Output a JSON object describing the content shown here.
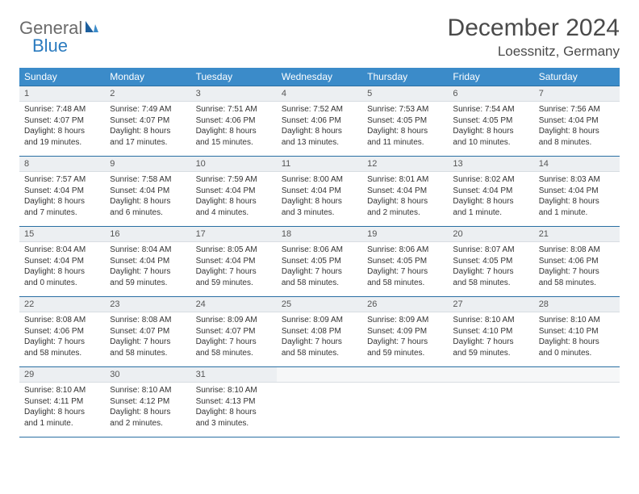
{
  "logo": {
    "word1": "General",
    "word2": "Blue",
    "color1": "#6b6b6b",
    "color2": "#2b7bbf"
  },
  "title": "December 2024",
  "location": "Loessnitz, Germany",
  "colors": {
    "header_bg": "#3b8bc9",
    "header_text": "#ffffff",
    "row_border": "#2a6fa3",
    "daynum_bg": "#eceff2",
    "body_text": "#333333"
  },
  "weekdays": [
    "Sunday",
    "Monday",
    "Tuesday",
    "Wednesday",
    "Thursday",
    "Friday",
    "Saturday"
  ],
  "days": [
    {
      "n": "1",
      "sr": "7:48 AM",
      "ss": "4:07 PM",
      "dl": "8 hours and 19 minutes."
    },
    {
      "n": "2",
      "sr": "7:49 AM",
      "ss": "4:07 PM",
      "dl": "8 hours and 17 minutes."
    },
    {
      "n": "3",
      "sr": "7:51 AM",
      "ss": "4:06 PM",
      "dl": "8 hours and 15 minutes."
    },
    {
      "n": "4",
      "sr": "7:52 AM",
      "ss": "4:06 PM",
      "dl": "8 hours and 13 minutes."
    },
    {
      "n": "5",
      "sr": "7:53 AM",
      "ss": "4:05 PM",
      "dl": "8 hours and 11 minutes."
    },
    {
      "n": "6",
      "sr": "7:54 AM",
      "ss": "4:05 PM",
      "dl": "8 hours and 10 minutes."
    },
    {
      "n": "7",
      "sr": "7:56 AM",
      "ss": "4:04 PM",
      "dl": "8 hours and 8 minutes."
    },
    {
      "n": "8",
      "sr": "7:57 AM",
      "ss": "4:04 PM",
      "dl": "8 hours and 7 minutes."
    },
    {
      "n": "9",
      "sr": "7:58 AM",
      "ss": "4:04 PM",
      "dl": "8 hours and 6 minutes."
    },
    {
      "n": "10",
      "sr": "7:59 AM",
      "ss": "4:04 PM",
      "dl": "8 hours and 4 minutes."
    },
    {
      "n": "11",
      "sr": "8:00 AM",
      "ss": "4:04 PM",
      "dl": "8 hours and 3 minutes."
    },
    {
      "n": "12",
      "sr": "8:01 AM",
      "ss": "4:04 PM",
      "dl": "8 hours and 2 minutes."
    },
    {
      "n": "13",
      "sr": "8:02 AM",
      "ss": "4:04 PM",
      "dl": "8 hours and 1 minute."
    },
    {
      "n": "14",
      "sr": "8:03 AM",
      "ss": "4:04 PM",
      "dl": "8 hours and 1 minute."
    },
    {
      "n": "15",
      "sr": "8:04 AM",
      "ss": "4:04 PM",
      "dl": "8 hours and 0 minutes."
    },
    {
      "n": "16",
      "sr": "8:04 AM",
      "ss": "4:04 PM",
      "dl": "7 hours and 59 minutes."
    },
    {
      "n": "17",
      "sr": "8:05 AM",
      "ss": "4:04 PM",
      "dl": "7 hours and 59 minutes."
    },
    {
      "n": "18",
      "sr": "8:06 AM",
      "ss": "4:05 PM",
      "dl": "7 hours and 58 minutes."
    },
    {
      "n": "19",
      "sr": "8:06 AM",
      "ss": "4:05 PM",
      "dl": "7 hours and 58 minutes."
    },
    {
      "n": "20",
      "sr": "8:07 AM",
      "ss": "4:05 PM",
      "dl": "7 hours and 58 minutes."
    },
    {
      "n": "21",
      "sr": "8:08 AM",
      "ss": "4:06 PM",
      "dl": "7 hours and 58 minutes."
    },
    {
      "n": "22",
      "sr": "8:08 AM",
      "ss": "4:06 PM",
      "dl": "7 hours and 58 minutes."
    },
    {
      "n": "23",
      "sr": "8:08 AM",
      "ss": "4:07 PM",
      "dl": "7 hours and 58 minutes."
    },
    {
      "n": "24",
      "sr": "8:09 AM",
      "ss": "4:07 PM",
      "dl": "7 hours and 58 minutes."
    },
    {
      "n": "25",
      "sr": "8:09 AM",
      "ss": "4:08 PM",
      "dl": "7 hours and 58 minutes."
    },
    {
      "n": "26",
      "sr": "8:09 AM",
      "ss": "4:09 PM",
      "dl": "7 hours and 59 minutes."
    },
    {
      "n": "27",
      "sr": "8:10 AM",
      "ss": "4:10 PM",
      "dl": "7 hours and 59 minutes."
    },
    {
      "n": "28",
      "sr": "8:10 AM",
      "ss": "4:10 PM",
      "dl": "8 hours and 0 minutes."
    },
    {
      "n": "29",
      "sr": "8:10 AM",
      "ss": "4:11 PM",
      "dl": "8 hours and 1 minute."
    },
    {
      "n": "30",
      "sr": "8:10 AM",
      "ss": "4:12 PM",
      "dl": "8 hours and 2 minutes."
    },
    {
      "n": "31",
      "sr": "8:10 AM",
      "ss": "4:13 PM",
      "dl": "8 hours and 3 minutes."
    }
  ],
  "labels": {
    "sunrise": "Sunrise:",
    "sunset": "Sunset:",
    "daylight": "Daylight:"
  },
  "layout": {
    "first_weekday_index": 0,
    "total_cells": 35
  }
}
